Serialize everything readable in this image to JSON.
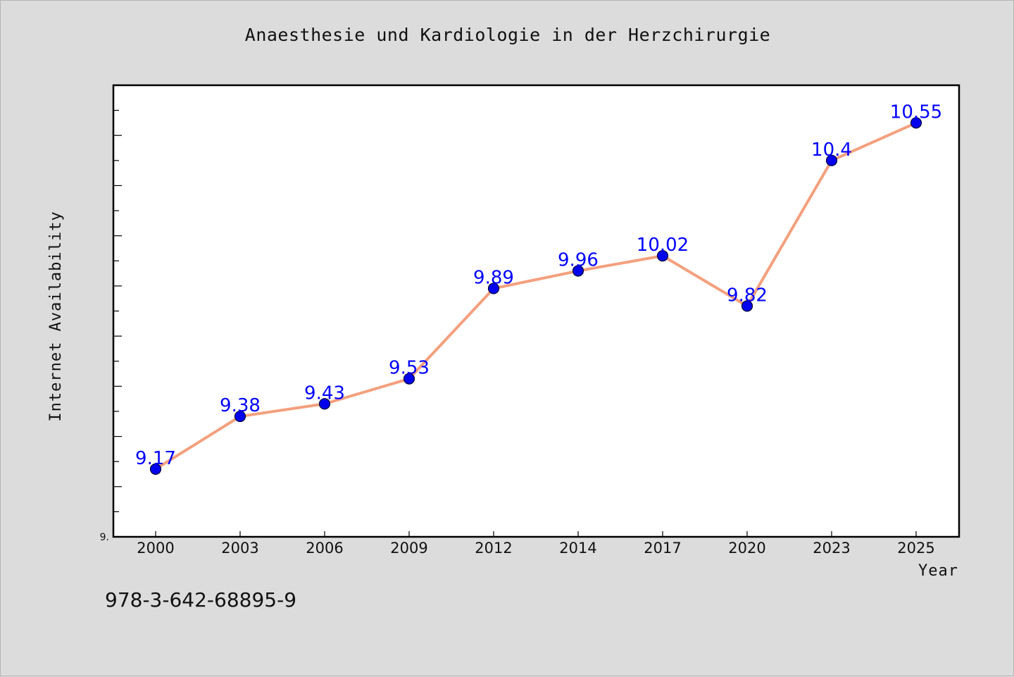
{
  "chart_data": {
    "type": "line",
    "title": "Anaesthesie und Kardiologie in der Herzchirurgie",
    "xlabel": "Year",
    "ylabel": "Internet Availability",
    "categories": [
      "2000",
      "2003",
      "2006",
      "2009",
      "2012",
      "2014",
      "2017",
      "2020",
      "2023",
      "2025"
    ],
    "series": [
      {
        "values": [
          9.17,
          9.38,
          9.43,
          9.53,
          9.89,
          9.96,
          10.02,
          9.82,
          10.4,
          10.55
        ],
        "labels": [
          "9.17",
          "9.38",
          "9.43",
          "9.53",
          "9.89",
          "9.96",
          "10.02",
          "9.82",
          "10.4",
          "10.55"
        ],
        "line_color": "#f4a07e",
        "marker_color": "#0000ee",
        "label_color": "#0000ff"
      }
    ],
    "ylim": [
      8.9,
      10.7
    ],
    "y_minor_step": 0.1,
    "y_tick_labels": [
      {
        "value": 8.9,
        "label": "9."
      }
    ],
    "grid": false
  },
  "footer": {
    "code": "978-3-642-68895-9"
  }
}
